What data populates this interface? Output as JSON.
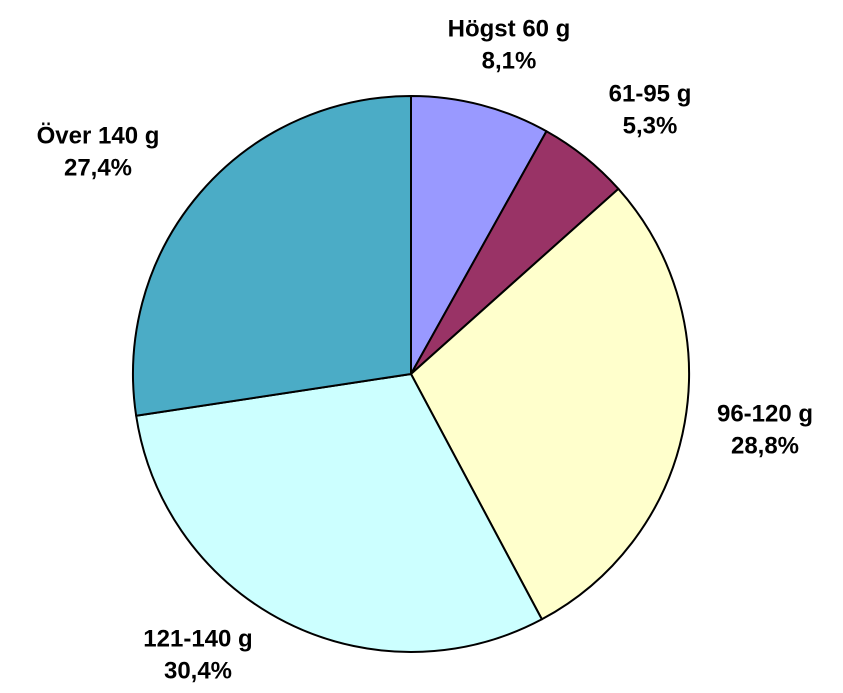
{
  "chart_data": {
    "type": "pie",
    "categories": [
      "Högst 60 g",
      "61-95 g",
      "96-120 g",
      "121-140 g",
      "Över 140 g"
    ],
    "values": [
      8.1,
      5.3,
      28.8,
      30.4,
      27.4
    ],
    "value_labels": [
      "8,1%",
      "5,3%",
      "28,8%",
      "30,4%",
      "27,4%"
    ],
    "colors": [
      "#9999ff",
      "#993366",
      "#ffffcc",
      "#ccffff",
      "#4bacc6"
    ]
  }
}
